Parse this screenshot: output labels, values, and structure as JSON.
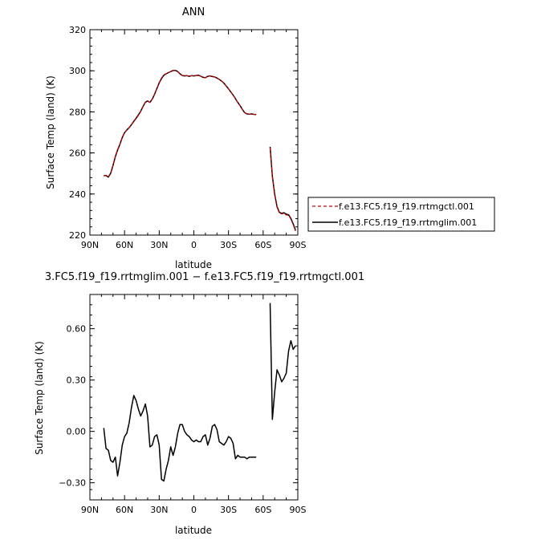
{
  "chart_data": [
    {
      "type": "line",
      "title": "ANN",
      "xlabel": "latitude",
      "ylabel": "Surface Temp (land) (K)",
      "xlim": [
        90,
        -90
      ],
      "ylim": [
        220,
        320
      ],
      "x_tick_values": [
        90,
        60,
        30,
        0,
        -30,
        -60,
        -90
      ],
      "x_tick_labels": [
        "90N",
        "60N",
        "30N",
        "0",
        "30S",
        "60S",
        "90S"
      ],
      "y_tick_values": [
        220,
        240,
        260,
        280,
        300,
        320
      ],
      "y_tick_labels": [
        "220",
        "240",
        "260",
        "280",
        "300",
        "320"
      ],
      "legend": {
        "placement": "right",
        "entries": [
          {
            "label": "f.e13.FC5.f19_f19.rrtmgctl.001",
            "color": "#cc0000",
            "style": "dashed"
          },
          {
            "label": "f.e13.FC5.f19_f19.rrtmglim.001",
            "color": "#000000",
            "style": "solid"
          }
        ]
      },
      "series": [
        {
          "name": "f.e13.FC5.f19_f19.rrtmgctl.001",
          "color": "#cc0000",
          "style": "dashed",
          "segments": [
            {
              "x": [
                78,
                76,
                74,
                72,
                70,
                68,
                66,
                64,
                62,
                60,
                58,
                56,
                54,
                52,
                50,
                48,
                46,
                44,
                42,
                40,
                38,
                36,
                34,
                32,
                30,
                28,
                26,
                24,
                22,
                20,
                18,
                16,
                14,
                12,
                10,
                8,
                6,
                4,
                2,
                0,
                -2,
                -4,
                -6,
                -8,
                -10,
                -12,
                -14,
                -16,
                -18,
                -20,
                -22,
                -24,
                -26,
                -28,
                -30,
                -32,
                -34,
                -36,
                -38,
                -40,
                -42,
                -44,
                -46,
                -48,
                -50,
                -52,
                -54
              ],
              "y": [
                248.9,
                249.1,
                248.4,
                250.3,
                254.1,
                258.3,
                261.7,
                264.2,
                267.5,
                269.9,
                271.2,
                272.3,
                273.8,
                275.2,
                276.7,
                278.3,
                280.2,
                282.5,
                284.6,
                285.2,
                284.7,
                286.3,
                288.7,
                291.4,
                294.2,
                296.5,
                298.0,
                298.6,
                299.1,
                299.6,
                300.1,
                300.2,
                299.6,
                298.5,
                297.7,
                297.5,
                297.6,
                297.3,
                297.6,
                297.5,
                297.7,
                297.8,
                297.4,
                296.8,
                296.6,
                297.3,
                297.5,
                297.2,
                297.0,
                296.5,
                295.8,
                295.0,
                294.0,
                292.6,
                291.2,
                289.7,
                288.2,
                286.4,
                284.6,
                283.0,
                281.2,
                279.6,
                279.0,
                278.9,
                279.0,
                278.8,
                278.7
              ]
            },
            {
              "x": [
                -66,
                -68,
                -70,
                -72,
                -74,
                -76,
                -78,
                -80,
                -82,
                -84,
                -86,
                -88
              ],
              "y": [
                262.5,
                248.6,
                239.6,
                233.6,
                230.8,
                230.3,
                230.6,
                229.8,
                229.6,
                227.8,
                225.1,
                222.0
              ]
            }
          ]
        },
        {
          "name": "f.e13.FC5.f19_f19.rrtmglim.001",
          "color": "#000000",
          "style": "solid",
          "segments": [
            {
              "x": [
                78,
                76,
                74,
                72,
                70,
                68,
                66,
                64,
                62,
                60,
                58,
                56,
                54,
                52,
                50,
                48,
                46,
                44,
                42,
                40,
                38,
                36,
                34,
                32,
                30,
                28,
                26,
                24,
                22,
                20,
                18,
                16,
                14,
                12,
                10,
                8,
                6,
                4,
                2,
                0,
                -2,
                -4,
                -6,
                -8,
                -10,
                -12,
                -14,
                -16,
                -18,
                -20,
                -22,
                -24,
                -26,
                -28,
                -30,
                -32,
                -34,
                -36,
                -38,
                -40,
                -42,
                -44,
                -46,
                -48,
                -50,
                -52,
                -54
              ],
              "y": [
                248.9,
                249.0,
                248.2,
                250.1,
                253.9,
                258.2,
                261.4,
                264.2,
                267.5,
                269.9,
                271.2,
                272.3,
                273.8,
                275.4,
                276.9,
                278.5,
                280.3,
                282.6,
                284.7,
                285.3,
                284.6,
                286.2,
                288.6,
                291.4,
                294.1,
                296.2,
                297.8,
                298.5,
                299.1,
                299.6,
                300.1,
                300.2,
                299.6,
                298.5,
                297.7,
                297.5,
                297.6,
                297.3,
                297.6,
                297.5,
                297.7,
                297.8,
                297.4,
                296.8,
                296.6,
                297.3,
                297.5,
                297.2,
                297.0,
                296.5,
                295.8,
                295.0,
                294.0,
                292.6,
                291.2,
                289.7,
                288.2,
                286.4,
                284.6,
                283.0,
                281.2,
                279.6,
                279.0,
                278.9,
                279.0,
                278.8,
                278.7
              ]
            },
            {
              "x": [
                -66,
                -68,
                -70,
                -72,
                -74,
                -76,
                -78,
                -80,
                -82,
                -84,
                -86,
                -88
              ],
              "y": [
                263.0,
                248.7,
                239.9,
                233.9,
                231.1,
                230.6,
                230.9,
                230.2,
                229.9,
                228.1,
                225.5,
                222.4
              ]
            }
          ]
        }
      ]
    },
    {
      "type": "line",
      "title": "3.FC5.f19_f19.rrtmglim.001 − f.e13.FC5.f19_f19.rrtmgctl.001",
      "xlabel": "latitude",
      "ylabel": "Surface Temp (land) (K)",
      "xlim": [
        90,
        -90
      ],
      "ylim": [
        -0.4,
        0.8
      ],
      "x_tick_values": [
        90,
        60,
        30,
        0,
        -30,
        -60,
        -90
      ],
      "x_tick_labels": [
        "90N",
        "60N",
        "30N",
        "0",
        "30S",
        "60S",
        "90S"
      ],
      "y_tick_values": [
        -0.3,
        0.0,
        0.3,
        0.6
      ],
      "y_tick_labels": [
        "−0.30",
        "0.00",
        "0.30",
        "0.60"
      ],
      "series": [
        {
          "color": "#000000",
          "style": "solid",
          "segments": [
            {
              "x": [
                78,
                76,
                74,
                72,
                70,
                68,
                66,
                64,
                62,
                60,
                58,
                56,
                54,
                52,
                50,
                48,
                46,
                44,
                42,
                40,
                38,
                36,
                34,
                32,
                30,
                28,
                26,
                24,
                22,
                20,
                18,
                16,
                14,
                12,
                10,
                8,
                6,
                4,
                2,
                0,
                -2,
                -4,
                -6,
                -8,
                -10,
                -12,
                -14,
                -16,
                -18,
                -20,
                -22,
                -24,
                -26,
                -28,
                -30,
                -32,
                -34,
                -36,
                -38,
                -40,
                -42,
                -44,
                -46,
                -48,
                -50,
                -52,
                -54
              ],
              "y": [
                0.02,
                -0.1,
                -0.11,
                -0.17,
                -0.18,
                -0.15,
                -0.26,
                -0.18,
                -0.08,
                -0.03,
                -0.01,
                0.05,
                0.14,
                0.21,
                0.18,
                0.13,
                0.09,
                0.12,
                0.16,
                0.09,
                -0.09,
                -0.08,
                -0.03,
                -0.02,
                -0.08,
                -0.28,
                -0.29,
                -0.22,
                -0.17,
                -0.09,
                -0.14,
                -0.09,
                -0.01,
                0.04,
                0.04,
                0.0,
                -0.02,
                -0.03,
                -0.05,
                -0.06,
                -0.05,
                -0.06,
                -0.06,
                -0.03,
                -0.02,
                -0.08,
                -0.04,
                0.03,
                0.04,
                0.01,
                -0.06,
                -0.07,
                -0.08,
                -0.06,
                -0.03,
                -0.04,
                -0.07,
                -0.16,
                -0.14,
                -0.15,
                -0.15,
                -0.15,
                -0.16,
                -0.15,
                -0.15,
                -0.15,
                -0.15
              ]
            },
            {
              "x": [
                -66,
                -68,
                -70,
                -72,
                -74,
                -76,
                -78,
                -80,
                -82,
                -84,
                -86,
                -88
              ],
              "y": [
                0.75,
                0.07,
                0.23,
                0.36,
                0.33,
                0.29,
                0.31,
                0.34,
                0.47,
                0.53,
                0.48,
                0.5
              ]
            }
          ]
        }
      ]
    }
  ]
}
